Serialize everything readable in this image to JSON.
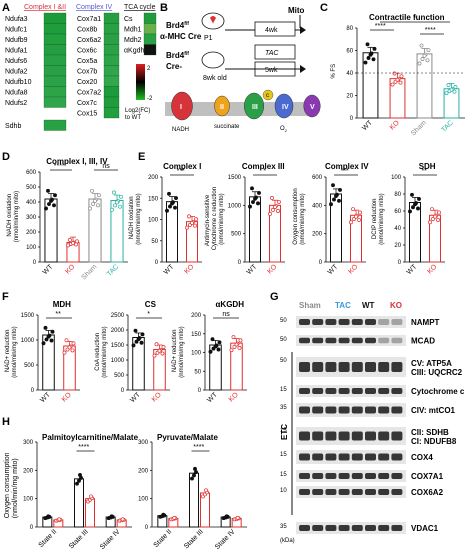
{
  "panel_letters": [
    "A",
    "B",
    "C",
    "D",
    "E",
    "F",
    "G",
    "H"
  ],
  "panelA": {
    "headers": [
      "Complex I &II",
      "Complex IV",
      "TCA cycle"
    ],
    "header_colors": [
      "#d6333a",
      "#5a5ad0",
      "#111111"
    ],
    "col1": [
      "Ndufa3",
      "Ndufc1",
      "Ndufb9",
      "Ndufa1",
      "Ndufs6",
      "Ndufa2",
      "Ndufb10",
      "Ndufa8",
      "Ndufs2"
    ],
    "col1_extra": [
      "Sdhb"
    ],
    "col2": [
      "Cox7a1",
      "Cox8b",
      "Cox6a2",
      "Cox6c",
      "Cox5a",
      "Cox7b",
      "Cox20",
      "Cox7a2",
      "Cox7c",
      "Cox15"
    ],
    "col3": [
      "Cs",
      "Mdh1",
      "Mdh2",
      "αKgdh"
    ],
    "legend_max": "2",
    "legend_min": "-2",
    "legend_label": "Log2(FC) to WT"
  },
  "panelB": {
    "row1_label": [
      "Brd4",
      "f/f",
      "α-MHC Cre"
    ],
    "row2_label": [
      "Brd4",
      "f/f",
      "Cre-"
    ],
    "p1": "P1",
    "week4": "4wk",
    "mito": "Mito",
    "tac": "TAC",
    "week8": "8wk old",
    "week5": "5wk",
    "complexes": [
      "I",
      "II",
      "III",
      "IV",
      "V"
    ],
    "labels": {
      "nadh": "NADH",
      "succinate": "succinate",
      "c": "c",
      "o2": "O",
      "o2_sub": "2"
    }
  },
  "panelC": {
    "title": "Contractile function",
    "ylabel": "% FS",
    "yticks": [
      "0",
      "20",
      "40",
      "60",
      "80"
    ],
    "xcats": [
      "WT",
      "KO",
      "Sham",
      "TAC"
    ],
    "sig": [
      "****",
      "****",
      "*"
    ]
  },
  "panelD": {
    "title": "Complex I, III, IV",
    "ylabel": [
      "NADH oxidation",
      "(nmol/min/mg mito)"
    ],
    "yticks": [
      "0",
      "100",
      "200",
      "300",
      "400",
      "500",
      "600"
    ],
    "xcats": [
      "WT",
      "KO",
      "Sham",
      "TAC"
    ],
    "sig": [
      "****",
      "ns"
    ]
  },
  "panelE": [
    {
      "title": "Complex I",
      "ylabel": [
        "NADH oxidation",
        "(nmol/min/mg mito)"
      ],
      "yticks": [
        "0",
        "50",
        "100",
        "150",
        "200"
      ],
      "sig": "***"
    },
    {
      "title": "Complex III",
      "ylabel": [
        "Antimycin-sensitive",
        "Cytochrome c reduction",
        "(nmol/min/mg mito)"
      ],
      "yticks": [
        "0",
        "500",
        "1000",
        "1500"
      ],
      "sig": "*"
    },
    {
      "title": "Complex IV",
      "ylabel": [
        "Oxygen consumption",
        "(nmol/min/mg mito)"
      ],
      "yticks": [
        "0",
        "200",
        "400",
        "600"
      ],
      "sig": "***"
    },
    {
      "title": "SDH",
      "ylabel": [
        "DCIP reduction",
        "(nmol/min/mg mito)"
      ],
      "yticks": [
        "0",
        "20",
        "40",
        "60",
        "80",
        "100"
      ],
      "sig": "**"
    }
  ],
  "panelF": [
    {
      "title": "MDH",
      "ylabel": [
        "NAD+ reduction",
        "(nmol/min/mg mito)"
      ],
      "yticks": [
        "0",
        "500",
        "1000",
        "1500"
      ],
      "sig": "**"
    },
    {
      "title": "CS",
      "ylabel": [
        "CoA reduction",
        "(nmol/min/mg mito)"
      ],
      "yticks": [
        "0",
        "500",
        "1000",
        "1500",
        "2000",
        "2500"
      ],
      "sig": "*"
    },
    {
      "title": "αKGDH",
      "ylabel": [
        "NAD+ reduction",
        "(nmol/min/mg mito)"
      ],
      "yticks": [
        "0",
        "50",
        "100",
        "150",
        "200"
      ],
      "sig": "ns"
    }
  ],
  "xcats_2": [
    "WT",
    "KO"
  ],
  "panelG": {
    "groups": [
      "Sham",
      "TAC",
      "WT",
      "KO"
    ],
    "group_colors": [
      "#8a8a8a",
      "#3a9ad9",
      "#111111",
      "#d6333a"
    ],
    "markers": [
      "50",
      "50",
      "50",
      "50",
      "15",
      "35",
      "15",
      "15",
      "15",
      "10",
      "15",
      "35"
    ],
    "labels": [
      "NAMPT",
      "MCAD",
      "CV: ATP5A",
      "CIII: UQCRC2",
      "Cytochrome c",
      "CIV: mtCO1",
      "CII: SDHB",
      "CI: NDUFB8",
      "COX4",
      "COX7A1",
      "COX6A2",
      "VDAC1"
    ],
    "etc_label": "ETC",
    "kda": "(kDa)"
  },
  "panelH": [
    {
      "title": "Palmitoylcarnitine/Malate",
      "sig": "****"
    },
    {
      "title": "Pyruvate/Malate",
      "sig": "****"
    }
  ],
  "panelH_ylabel": [
    "Oxygen consumption",
    "(nmol/min/mg mito)"
  ],
  "panelH_yticks": [
    "0",
    "100",
    "200",
    "300"
  ],
  "panelH_xcats": [
    "State II",
    "State III",
    "State IV"
  ],
  "colors": {
    "wt": "#111111",
    "ko": "#e03030",
    "sham": "#8a8a8a",
    "tac": "#27b3a3",
    "ko_fill": "#e03030"
  },
  "chart_data": [
    {
      "type": "bar",
      "title": "Contractile function",
      "categories": [
        "WT",
        "KO",
        "Sham",
        "TAC"
      ],
      "values": [
        58,
        35,
        57,
        26
      ],
      "ylabel": "% FS",
      "ylim": [
        0,
        80
      ]
    },
    {
      "type": "bar",
      "title": "Complex I, III, IV",
      "categories": [
        "WT",
        "KO",
        "Sham",
        "TAC"
      ],
      "values": [
        420,
        130,
        420,
        410
      ],
      "ylim": [
        0,
        600
      ]
    },
    {
      "type": "bar",
      "title": "Complex I",
      "categories": [
        "WT",
        "KO"
      ],
      "values": [
        142,
        95
      ],
      "ylim": [
        0,
        200
      ]
    },
    {
      "type": "bar",
      "title": "Complex III",
      "categories": [
        "WT",
        "KO"
      ],
      "values": [
        1150,
        1000
      ],
      "ylim": [
        0,
        1500
      ]
    },
    {
      "type": "bar",
      "title": "Complex IV",
      "categories": [
        "WT",
        "KO"
      ],
      "values": [
        480,
        330
      ],
      "ylim": [
        0,
        600
      ]
    },
    {
      "type": "bar",
      "title": "SDH",
      "categories": [
        "WT",
        "KO"
      ],
      "values": [
        70,
        55
      ],
      "ylim": [
        0,
        100
      ]
    },
    {
      "type": "bar",
      "title": "MDH",
      "categories": [
        "WT",
        "KO"
      ],
      "values": [
        1100,
        880
      ],
      "ylim": [
        0,
        1500
      ]
    },
    {
      "type": "bar",
      "title": "CS",
      "categories": [
        "WT",
        "KO"
      ],
      "values": [
        1750,
        1350
      ],
      "ylim": [
        0,
        2500
      ]
    },
    {
      "type": "bar",
      "title": "αKGDH",
      "categories": [
        "WT",
        "KO"
      ],
      "values": [
        120,
        125
      ],
      "ylim": [
        0,
        200
      ]
    },
    {
      "type": "bar",
      "title": "Palmitoylcarnitine/Malate",
      "categories": [
        "State II",
        "State III",
        "State IV"
      ],
      "series": [
        {
          "values": [
            35,
            170,
            35
          ]
        },
        {
          "values": [
            25,
            100,
            25
          ]
        }
      ],
      "ylim": [
        0,
        300
      ]
    },
    {
      "type": "bar",
      "title": "Pyruvate/Malate",
      "categories": [
        "State II",
        "State III",
        "State IV"
      ],
      "series": [
        {
          "values": [
            40,
            190,
            35
          ]
        },
        {
          "values": [
            30,
            120,
            30
          ]
        }
      ],
      "ylim": [
        0,
        300
      ]
    }
  ]
}
